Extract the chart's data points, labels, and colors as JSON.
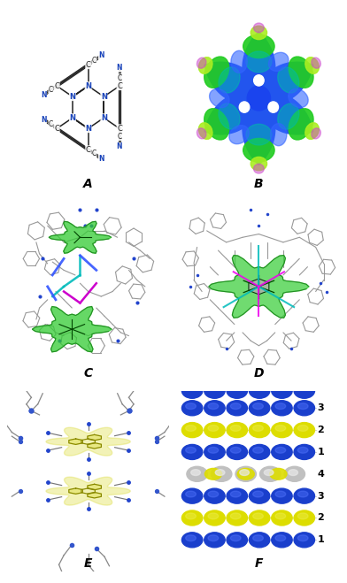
{
  "figure_size": [
    3.92,
    6.59
  ],
  "dpi": 100,
  "background_color": "#ffffff",
  "panels": [
    "A",
    "B",
    "C",
    "D",
    "E",
    "F"
  ],
  "label_fontsize": 10,
  "label_fontweight": "bold",
  "label_fontstyle": "italic",
  "panel_F": {
    "layer_labels": [
      "3",
      "2",
      "1",
      "4",
      "3",
      "2",
      "1"
    ],
    "layer_colors": [
      "#1a3fcc",
      "#dddd00",
      "#1a3fcc",
      "#b8b8b8",
      "#1a3fcc",
      "#dddd00",
      "#1a3fcc"
    ]
  }
}
